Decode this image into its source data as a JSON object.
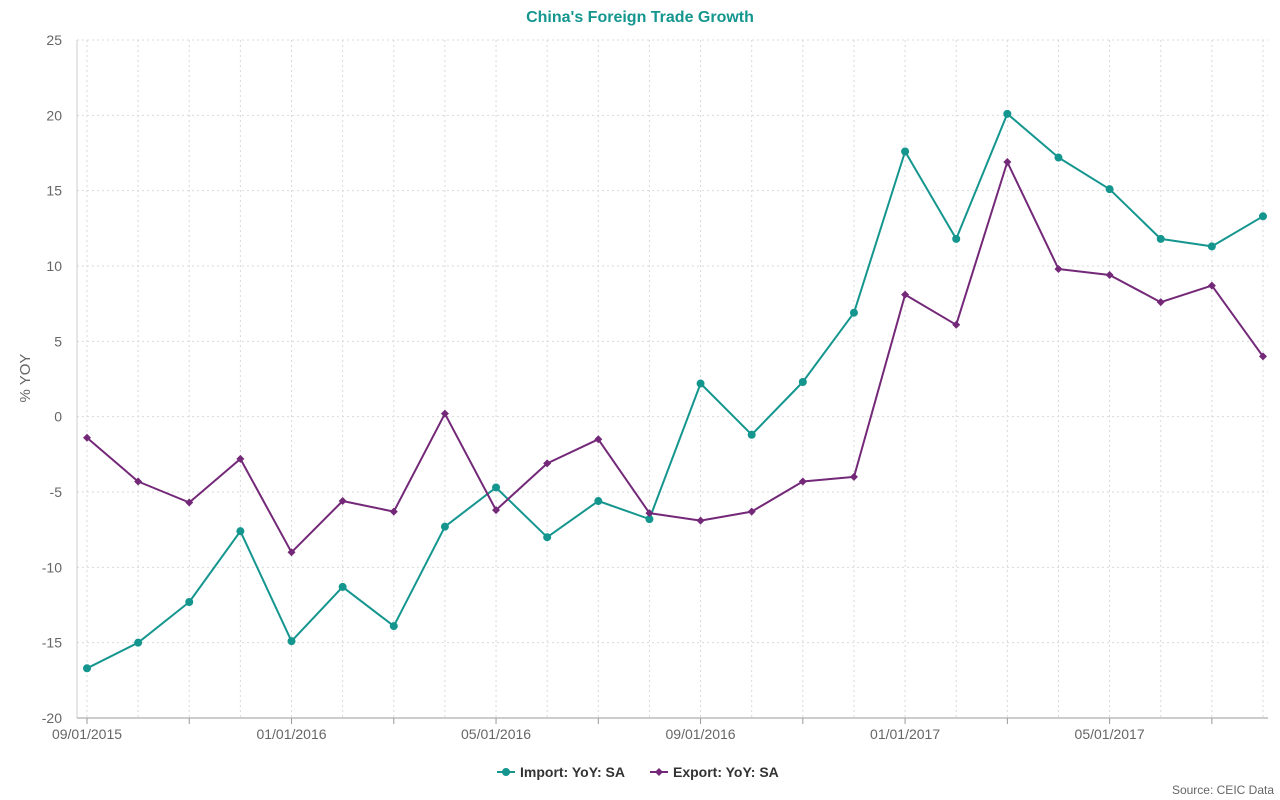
{
  "colors": {
    "import": "#14968f",
    "export": "#732878",
    "title": "#14968f",
    "grid": "#d9d9d9",
    "axis": "#cccccc"
  },
  "chart_data": {
    "type": "line",
    "title": "China's Foreign Trade Growth",
    "ylabel": "% YOY",
    "ylim": [
      -20,
      25
    ],
    "yticks": [
      25,
      20,
      15,
      10,
      5,
      0,
      -5,
      -10,
      -15,
      -20
    ],
    "x": [
      "2015-09",
      "2015-10",
      "2015-11",
      "2015-12",
      "2016-01",
      "2016-02",
      "2016-03",
      "2016-04",
      "2016-05",
      "2016-06",
      "2016-07",
      "2016-08",
      "2016-09",
      "2016-10",
      "2016-11",
      "2016-12",
      "2017-01",
      "2017-02",
      "2017-03",
      "2017-04",
      "2017-05",
      "2017-06",
      "2017-07",
      "2017-08"
    ],
    "xtick_labels": [
      "09/01/2015",
      "01/01/2016",
      "05/01/2016",
      "09/01/2016",
      "01/01/2017",
      "05/01/2017"
    ],
    "grid": true,
    "legend_position": "bottom-center",
    "series": [
      {
        "name": "Import: YoY: SA",
        "marker": "circle",
        "values": [
          -16.7,
          -15.0,
          -12.3,
          -7.6,
          -14.9,
          -11.3,
          -13.9,
          -7.3,
          -4.7,
          -8.0,
          -5.6,
          -6.8,
          2.2,
          -1.2,
          2.3,
          6.9,
          17.6,
          11.8,
          20.1,
          17.2,
          15.1,
          11.8,
          11.3,
          13.3
        ]
      },
      {
        "name": "Export: YoY: SA",
        "marker": "diamond",
        "values": [
          -1.4,
          -4.3,
          -5.7,
          -2.8,
          -9.0,
          -5.6,
          -6.3,
          0.2,
          -6.2,
          -3.1,
          -1.5,
          -6.4,
          -6.9,
          -6.3,
          -4.3,
          -4.0,
          8.1,
          6.1,
          16.9,
          9.8,
          9.4,
          7.6,
          8.7,
          4.0
        ]
      }
    ],
    "source": "Source: CEIC Data"
  }
}
